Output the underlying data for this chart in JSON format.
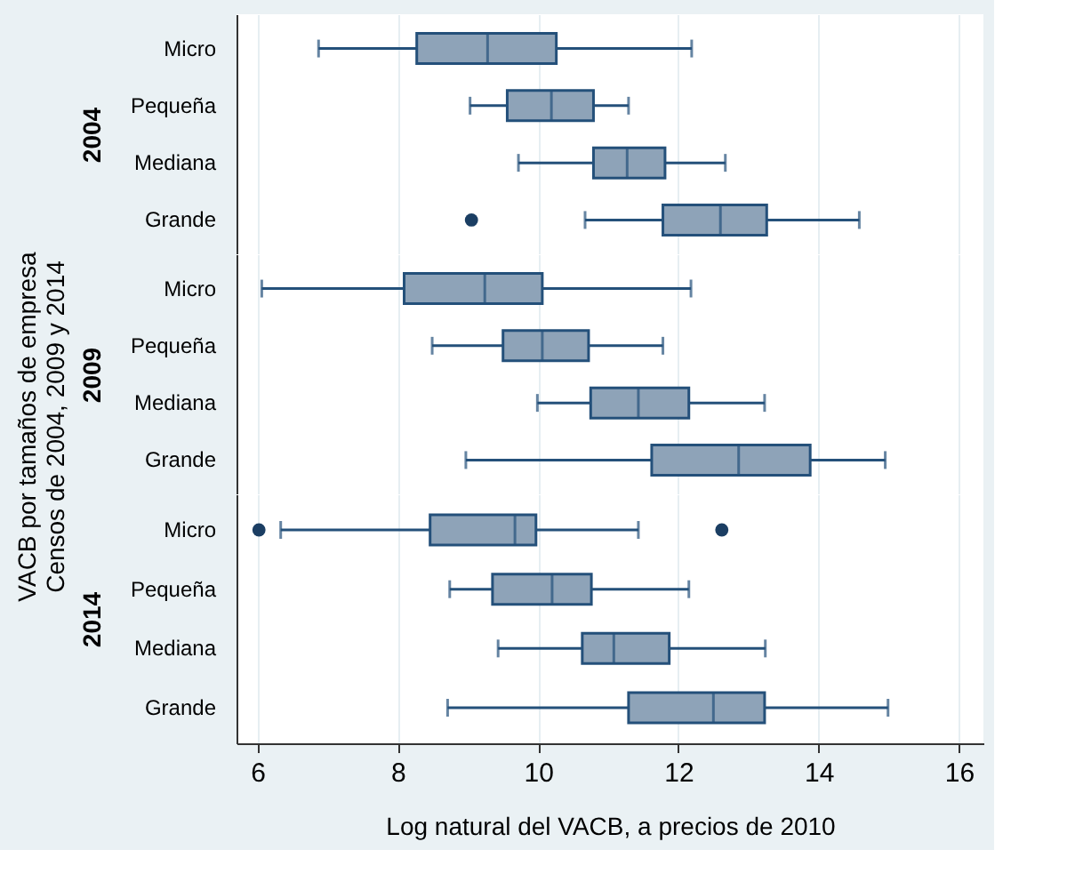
{
  "chart_data": [
    {
      "type": "box",
      "orientation": "horizontal",
      "ylabel": "2004",
      "annotations": [
        "VACB por tamaños de empresa",
        "Censos de 2004, 2009 y 2014"
      ],
      "categories": [
        "Micro",
        "Pequeña",
        "Mediana",
        "Grande"
      ],
      "color": "#8ea3b8",
      "xlim": [
        5.7,
        16.35
      ],
      "xticks": [
        6,
        8,
        10,
        12,
        14,
        16
      ],
      "grid": "x",
      "tick_labels": "y",
      "boxes": [
        {
          "low": 6.87,
          "q1": 8.27,
          "median": 9.28,
          "q3": 10.26,
          "high": 12.19
        },
        {
          "low": 9.03,
          "q1": 9.56,
          "median": 10.19,
          "q3": 10.79,
          "high": 11.29
        },
        {
          "low": 9.72,
          "q1": 10.79,
          "median": 11.27,
          "q3": 11.81,
          "high": 12.67
        },
        {
          "low": 10.67,
          "q1": 11.78,
          "median": 12.6,
          "q3": 13.26,
          "high": 14.58,
          "outliers": [
            9.05
          ]
        }
      ]
    },
    {
      "type": "box",
      "orientation": "horizontal",
      "ylabel": "2009",
      "categories": [
        "Micro",
        "Pequeña",
        "Mediana",
        "Grande"
      ],
      "color": "#8ea3b8",
      "xlim": [
        5.7,
        16.35
      ],
      "xticks": [
        6,
        8,
        10,
        12,
        14,
        16
      ],
      "grid": "x",
      "tick_labels": "y",
      "boxes": [
        {
          "low": 6.06,
          "q1": 8.09,
          "median": 9.24,
          "q3": 10.06,
          "high": 12.18
        },
        {
          "low": 8.49,
          "q1": 9.5,
          "median": 10.06,
          "q3": 10.72,
          "high": 11.78
        },
        {
          "low": 9.99,
          "q1": 10.75,
          "median": 11.43,
          "q3": 12.15,
          "high": 13.23
        },
        {
          "low": 8.97,
          "q1": 11.62,
          "median": 12.86,
          "q3": 13.88,
          "high": 14.95
        }
      ]
    },
    {
      "type": "box",
      "orientation": "horizontal",
      "ylabel": "2014",
      "xlabel": "Log natural del VACB, a precios de 2010",
      "categories": [
        "Micro",
        "Pequeña",
        "Mediana",
        "Grande"
      ],
      "color": "#8ea3b8",
      "xlim": [
        5.7,
        16.35
      ],
      "xticks": [
        6,
        8,
        10,
        12,
        14,
        16
      ],
      "grid": "x",
      "boxes": [
        {
          "low": 6.33,
          "q1": 8.46,
          "median": 9.67,
          "q3": 9.97,
          "high": 11.43,
          "outliers": [
            6.02,
            12.62
          ]
        },
        {
          "low": 8.74,
          "q1": 9.35,
          "median": 10.2,
          "q3": 10.76,
          "high": 12.15
        },
        {
          "low": 9.43,
          "q1": 10.63,
          "median": 11.08,
          "q3": 11.87,
          "high": 13.24
        },
        {
          "low": 8.71,
          "q1": 11.29,
          "median": 12.5,
          "q3": 13.23,
          "high": 14.99
        }
      ]
    }
  ]
}
